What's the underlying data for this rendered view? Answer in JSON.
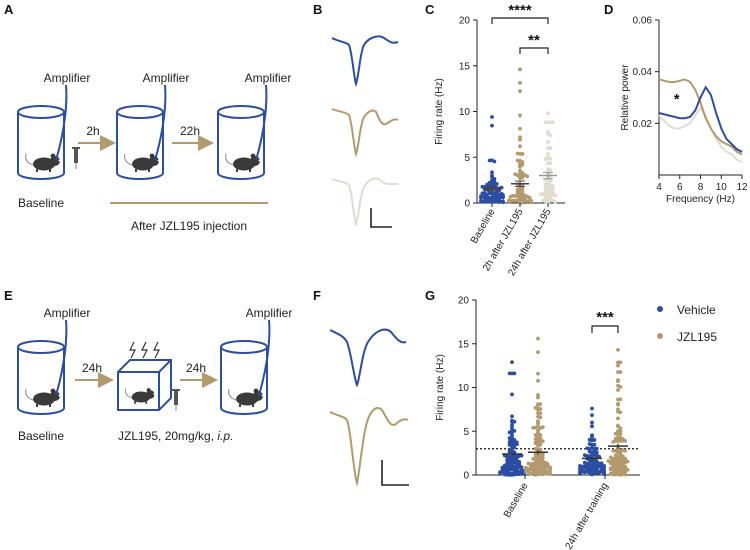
{
  "colors": {
    "blue": "#2b4ea3",
    "gold": "#b39a6e",
    "light": "#e2dccf",
    "axis": "#222222"
  },
  "panelA": {
    "label": "A",
    "amplifier": "Amplifier",
    "arrow1": "2h",
    "arrow2": "22h",
    "baseline": "Baseline",
    "after": "After JZL195 injection"
  },
  "panelB": {
    "label": "B"
  },
  "panelE": {
    "label": "E",
    "amplifier": "Amplifier",
    "arrow1": "24h",
    "arrow2": "24h",
    "baseline": "Baseline",
    "drug_prefix": "JZL195, 20mg/kg, ",
    "drug_suffix": "i.p."
  },
  "panelF": {
    "label": "F"
  },
  "chart_data": [
    {
      "panel": "C",
      "type": "scatter",
      "ylabel": "Firing rate (Hz)",
      "ylim": [
        0,
        20
      ],
      "yticks": [
        "0",
        "5",
        "10",
        "15",
        "20"
      ],
      "categories": [
        "Baseline",
        "2h after JZL195",
        "24h after JZL195"
      ],
      "series": [
        {
          "mean": 1.6,
          "sem": 0.2,
          "max": 9.4,
          "n": 80,
          "color": "#2b4ea3"
        },
        {
          "mean": 2.1,
          "sem": 0.3,
          "max": 14.6,
          "n": 75,
          "color": "#b39a6e"
        },
        {
          "mean": 3.0,
          "sem": 0.35,
          "max": 9.8,
          "n": 65,
          "color": "#e2dccf"
        }
      ],
      "annotations": [
        {
          "from": 0,
          "to": 2,
          "text": "****"
        },
        {
          "from": 1,
          "to": 2,
          "text": "**"
        }
      ]
    },
    {
      "panel": "D",
      "type": "line",
      "xlabel": "Frequency (Hz)",
      "ylabel": "Relative power",
      "xlim": [
        4,
        12
      ],
      "ylim": [
        0,
        0.06
      ],
      "xticks": [
        "4",
        "6",
        "8",
        "10",
        "12"
      ],
      "yticks": [
        "0.00",
        "0.02",
        "0.04",
        "0.06"
      ],
      "annotation": "*",
      "x": [
        4,
        4.5,
        5,
        5.5,
        6,
        6.5,
        7,
        7.5,
        8,
        8.5,
        9,
        9.5,
        10,
        10.5,
        11,
        11.5,
        12
      ],
      "series": [
        {
          "color": "#2b4ea3",
          "values": [
            0.024,
            0.0235,
            0.023,
            0.0225,
            0.022,
            0.022,
            0.0225,
            0.025,
            0.03,
            0.034,
            0.031,
            0.024,
            0.018,
            0.014,
            0.012,
            0.01,
            0.009
          ]
        },
        {
          "color": "#b39a6e",
          "values": [
            0.037,
            0.0365,
            0.036,
            0.036,
            0.0365,
            0.037,
            0.036,
            0.033,
            0.028,
            0.022,
            0.018,
            0.015,
            0.013,
            0.012,
            0.011,
            0.009,
            0.008
          ]
        },
        {
          "color": "#e2dccf",
          "values": [
            0.023,
            0.021,
            0.019,
            0.018,
            0.018,
            0.019,
            0.02,
            0.023,
            0.026,
            0.023,
            0.018,
            0.014,
            0.011,
            0.009,
            0.008,
            0.006,
            0.005
          ]
        }
      ]
    },
    {
      "panel": "G",
      "type": "scatter",
      "ylabel": "Firing rate (Hz)",
      "ylim": [
        0,
        20
      ],
      "yticks": [
        "0",
        "5",
        "10",
        "15",
        "20"
      ],
      "categories": [
        "Baseline",
        "24h after training"
      ],
      "threshold": 3,
      "legend": [
        {
          "name": "Vehicle",
          "color": "#2b4ea3"
        },
        {
          "name": "JZL195",
          "color": "#b39a6e"
        }
      ],
      "groups": [
        {
          "category": 0,
          "series": 0,
          "mean": 2.4,
          "sem": 0.25,
          "max": 12.9,
          "n": 110
        },
        {
          "category": 0,
          "series": 1,
          "mean": 2.6,
          "sem": 0.25,
          "max": 15.6,
          "n": 120
        },
        {
          "category": 1,
          "series": 0,
          "mean": 1.9,
          "sem": 0.15,
          "max": 7.6,
          "n": 100
        },
        {
          "category": 1,
          "series": 1,
          "mean": 3.3,
          "sem": 0.3,
          "max": 14.3,
          "n": 110
        }
      ],
      "annotation": {
        "text": "***"
      }
    }
  ]
}
